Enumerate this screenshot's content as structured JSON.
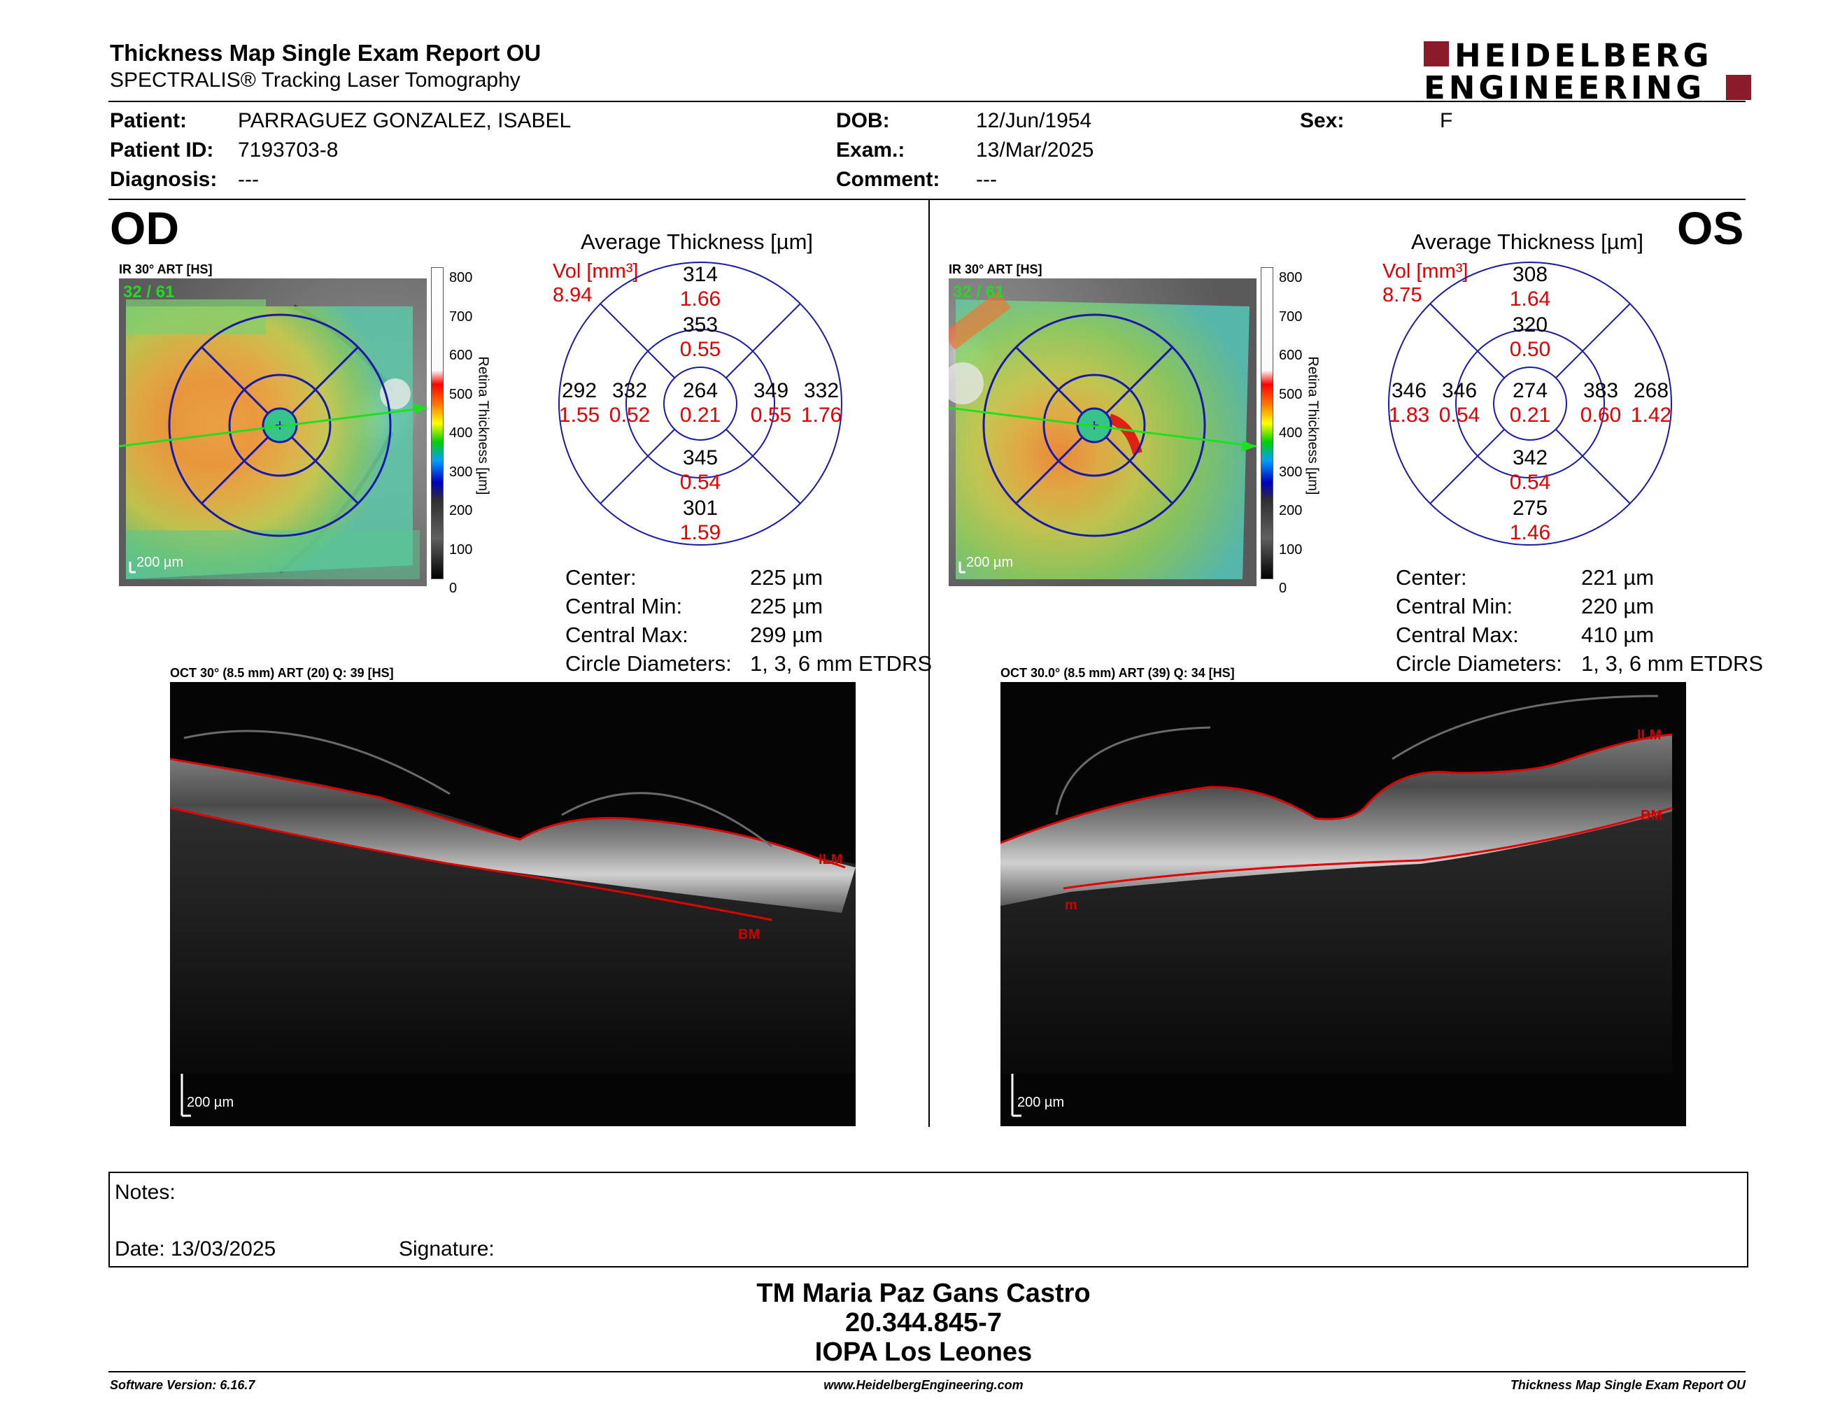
{
  "header": {
    "title": "Thickness Map Single Exam Report OU",
    "subtitle": "SPECTRALIS® Tracking Laser Tomography",
    "logo_line1": "HEIDELBERG",
    "logo_line2": "ENGINEERING",
    "brand_color": "#8b1a2b"
  },
  "patient": {
    "patient_label": "Patient:",
    "patient_name": "PARRAGUEZ GONZALEZ, ISABEL",
    "id_label": "Patient ID:",
    "id_value": "7193703-8",
    "diagnosis_label": "Diagnosis:",
    "diagnosis_value": "---",
    "dob_label": "DOB:",
    "dob_value": "12/Jun/1954",
    "exam_label": "Exam.:",
    "exam_value": "13/Mar/2025",
    "comment_label": "Comment:",
    "comment_value": "---",
    "sex_label": "Sex:",
    "sex_value": "F"
  },
  "od": {
    "eye": "OD",
    "ir_label": "IR 30° ART [HS]",
    "ir_overlay": "32 / 61",
    "scale": "200 µm",
    "colorbar_ticks": [
      "800",
      "700",
      "600",
      "500",
      "400",
      "300",
      "200",
      "100",
      "0"
    ],
    "colorbar_label": "Retina  Thickness [µm]",
    "avg_title": "Average Thickness [µm]",
    "vol_label": "Vol [mm³]",
    "vol_value": "8.94",
    "grid": {
      "outer_top": "314",
      "outer_top_vol": "1.66",
      "inner_top": "353",
      "inner_top_vol": "0.55",
      "outer_left": "292",
      "outer_left_vol": "1.55",
      "inner_left": "332",
      "inner_left_vol": "0.52",
      "center": "264",
      "center_vol": "0.21",
      "inner_right": "349",
      "inner_right_vol": "0.55",
      "outer_right": "332",
      "outer_right_vol": "1.76",
      "inner_bottom": "345",
      "inner_bottom_vol": "0.54",
      "outer_bottom": "301",
      "outer_bottom_vol": "1.59"
    },
    "stats": {
      "center_label": "Center:",
      "center_value": "225 µm",
      "min_label": "Central Min:",
      "min_value": "225 µm",
      "max_label": "Central Max:",
      "max_value": "299 µm",
      "diam_label": "Circle Diameters:",
      "diam_value": "1, 3, 6 mm ETDRS"
    },
    "oct_label": "OCT 30° (8.5 mm) ART (20) Q: 39 [HS]",
    "oct_scale": "200 µm",
    "ilm": "ILM",
    "bm": "BM"
  },
  "os": {
    "eye": "OS",
    "ir_label": "IR 30° ART [HS]",
    "ir_overlay": "32 / 61",
    "scale": "200 µm",
    "colorbar_ticks": [
      "800",
      "700",
      "600",
      "500",
      "400",
      "300",
      "200",
      "100",
      "0"
    ],
    "colorbar_label": "Retina  Thickness [µm]",
    "avg_title": "Average Thickness [µm]",
    "vol_label": "Vol [mm³]",
    "vol_value": "8.75",
    "grid": {
      "outer_top": "308",
      "outer_top_vol": "1.64",
      "inner_top": "320",
      "inner_top_vol": "0.50",
      "outer_left": "346",
      "outer_left_vol": "1.83",
      "inner_left": "346",
      "inner_left_vol": "0.54",
      "center": "274",
      "center_vol": "0.21",
      "inner_right": "383",
      "inner_right_vol": "0.60",
      "outer_right": "268",
      "outer_right_vol": "1.42",
      "inner_bottom": "342",
      "inner_bottom_vol": "0.54",
      "outer_bottom": "275",
      "outer_bottom_vol": "1.46"
    },
    "stats": {
      "center_label": "Center:",
      "center_value": "221 µm",
      "min_label": "Central Min:",
      "min_value": "220 µm",
      "max_label": "Central Max:",
      "max_value": "410 µm",
      "diam_label": "Circle Diameters:",
      "diam_value": "1, 3, 6 mm ETDRS"
    },
    "oct_label": "OCT 30.0° (8.5 mm) ART (39) Q: 34 [HS]",
    "oct_scale": "200 µm",
    "ilm": "ILM",
    "bm": "BM",
    "m_marker": "m"
  },
  "notes": {
    "notes_label": "Notes:",
    "date_label": "Date: 13/03/2025",
    "signature_label": "Signature:"
  },
  "signature": {
    "name": "TM Maria Paz Gans Castro",
    "rut": "20.344.845-7",
    "institution": "IOPA Los Leones"
  },
  "footer": {
    "software": "Software Version: 6.16.7",
    "website": "www.HeidelbergEngineering.com",
    "report": "Thickness Map Single Exam Report OU"
  }
}
